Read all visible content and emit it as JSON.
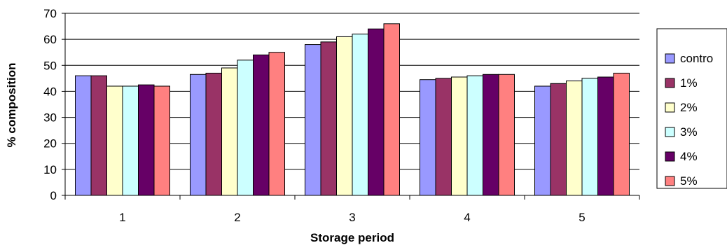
{
  "chart_data": {
    "type": "bar",
    "title": "",
    "xlabel": "Storage period",
    "ylabel": "% composition",
    "categories": [
      "1",
      "2",
      "3",
      "4",
      "5"
    ],
    "ylim": [
      0,
      70
    ],
    "yticks": [
      0,
      10,
      20,
      30,
      40,
      50,
      60,
      70
    ],
    "grid": true,
    "legend_position": "right",
    "series": [
      {
        "name": "contro",
        "color": "#9999FF",
        "values": [
          46,
          46.5,
          58,
          44.5,
          42
        ]
      },
      {
        "name": "1%",
        "color": "#993366",
        "values": [
          46,
          47,
          59,
          45,
          43
        ]
      },
      {
        "name": "2%",
        "color": "#FFFFCC",
        "values": [
          42,
          49,
          61,
          45.5,
          44
        ]
      },
      {
        "name": "3%",
        "color": "#CCFFFF",
        "values": [
          42,
          52,
          62,
          46,
          45
        ]
      },
      {
        "name": "4%",
        "color": "#660066",
        "values": [
          42.5,
          54,
          64,
          46.5,
          45.5
        ]
      },
      {
        "name": "5%",
        "color": "#FF8080",
        "values": [
          42,
          55,
          66,
          46.5,
          47
        ]
      }
    ]
  }
}
